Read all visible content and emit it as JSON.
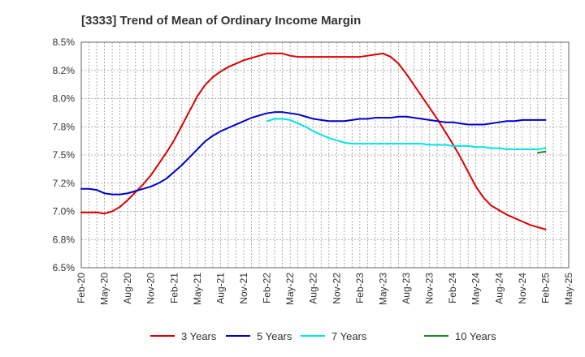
{
  "chart_data": {
    "type": "line",
    "title": "[3333]  Trend of Mean of Ordinary Income Margin",
    "xlabel": "",
    "ylabel": "",
    "x_ticks": [
      "Feb-20",
      "May-20",
      "Aug-20",
      "Nov-20",
      "Feb-21",
      "May-21",
      "Aug-21",
      "Nov-21",
      "Feb-22",
      "May-22",
      "Aug-22",
      "Nov-22",
      "Feb-23",
      "May-23",
      "Aug-23",
      "Nov-23",
      "Feb-24",
      "May-24",
      "Aug-24",
      "Nov-24",
      "Feb-25",
      "May-25"
    ],
    "y_ticks": [
      "6.5%",
      "6.8%",
      "7.0%",
      "7.2%",
      "7.5%",
      "7.8%",
      "8.0%",
      "8.2%",
      "8.5%"
    ],
    "ylim": [
      6.5,
      8.5
    ],
    "grid": true,
    "legend_position": "bottom",
    "series": [
      {
        "name": "3 Years",
        "color": "#dd0000",
        "points": [
          [
            "Feb-20",
            6.99
          ],
          [
            "Mar-20",
            6.99
          ],
          [
            "Apr-20",
            6.99
          ],
          [
            "May-20",
            6.98
          ],
          [
            "Jun-20",
            7.0
          ],
          [
            "Jul-20",
            7.04
          ],
          [
            "Aug-20",
            7.1
          ],
          [
            "Sep-20",
            7.17
          ],
          [
            "Oct-20",
            7.24
          ],
          [
            "Nov-20",
            7.32
          ],
          [
            "Dec-20",
            7.42
          ],
          [
            "Jan-21",
            7.52
          ],
          [
            "Feb-21",
            7.63
          ],
          [
            "Mar-21",
            7.76
          ],
          [
            "Apr-21",
            7.89
          ],
          [
            "May-21",
            8.02
          ],
          [
            "Jun-21",
            8.12
          ],
          [
            "Jul-21",
            8.19
          ],
          [
            "Aug-21",
            8.24
          ],
          [
            "Sep-21",
            8.28
          ],
          [
            "Oct-21",
            8.31
          ],
          [
            "Nov-21",
            8.34
          ],
          [
            "Dec-21",
            8.36
          ],
          [
            "Jan-22",
            8.38
          ],
          [
            "Feb-22",
            8.4
          ],
          [
            "Mar-22",
            8.4
          ],
          [
            "Apr-22",
            8.4
          ],
          [
            "May-22",
            8.38
          ],
          [
            "Jun-22",
            8.37
          ],
          [
            "Jul-22",
            8.37
          ],
          [
            "Aug-22",
            8.37
          ],
          [
            "Sep-22",
            8.37
          ],
          [
            "Oct-22",
            8.37
          ],
          [
            "Nov-22",
            8.37
          ],
          [
            "Dec-22",
            8.37
          ],
          [
            "Jan-23",
            8.37
          ],
          [
            "Feb-23",
            8.37
          ],
          [
            "Mar-23",
            8.38
          ],
          [
            "Apr-23",
            8.39
          ],
          [
            "May-23",
            8.4
          ],
          [
            "Jun-23",
            8.37
          ],
          [
            "Jul-23",
            8.31
          ],
          [
            "Aug-23",
            8.22
          ],
          [
            "Sep-23",
            8.12
          ],
          [
            "Oct-23",
            8.02
          ],
          [
            "Nov-23",
            7.92
          ],
          [
            "Dec-23",
            7.82
          ],
          [
            "Jan-24",
            7.71
          ],
          [
            "Feb-24",
            7.6
          ],
          [
            "Mar-24",
            7.48
          ],
          [
            "Apr-24",
            7.35
          ],
          [
            "May-24",
            7.22
          ],
          [
            "Jun-24",
            7.12
          ],
          [
            "Jul-24",
            7.05
          ],
          [
            "Aug-24",
            7.01
          ],
          [
            "Sep-24",
            6.97
          ],
          [
            "Oct-24",
            6.94
          ],
          [
            "Nov-24",
            6.91
          ],
          [
            "Dec-24",
            6.88
          ],
          [
            "Jan-25",
            6.86
          ],
          [
            "Feb-25",
            6.84
          ]
        ]
      },
      {
        "name": "5 Years",
        "color": "#0000cc",
        "points": [
          [
            "Feb-20",
            7.2
          ],
          [
            "Mar-20",
            7.2
          ],
          [
            "Apr-20",
            7.19
          ],
          [
            "May-20",
            7.16
          ],
          [
            "Jun-20",
            7.15
          ],
          [
            "Jul-20",
            7.15
          ],
          [
            "Aug-20",
            7.16
          ],
          [
            "Sep-20",
            7.18
          ],
          [
            "Oct-20",
            7.2
          ],
          [
            "Nov-20",
            7.22
          ],
          [
            "Dec-20",
            7.25
          ],
          [
            "Jan-21",
            7.29
          ],
          [
            "Feb-21",
            7.35
          ],
          [
            "Mar-21",
            7.41
          ],
          [
            "Apr-21",
            7.48
          ],
          [
            "May-21",
            7.55
          ],
          [
            "Jun-21",
            7.62
          ],
          [
            "Jul-21",
            7.67
          ],
          [
            "Aug-21",
            7.71
          ],
          [
            "Sep-21",
            7.74
          ],
          [
            "Oct-21",
            7.77
          ],
          [
            "Nov-21",
            7.8
          ],
          [
            "Dec-21",
            7.83
          ],
          [
            "Jan-22",
            7.85
          ],
          [
            "Feb-22",
            7.87
          ],
          [
            "Mar-22",
            7.88
          ],
          [
            "Apr-22",
            7.88
          ],
          [
            "May-22",
            7.87
          ],
          [
            "Jun-22",
            7.86
          ],
          [
            "Jul-22",
            7.84
          ],
          [
            "Aug-22",
            7.82
          ],
          [
            "Sep-22",
            7.81
          ],
          [
            "Oct-22",
            7.8
          ],
          [
            "Nov-22",
            7.8
          ],
          [
            "Dec-22",
            7.8
          ],
          [
            "Jan-23",
            7.81
          ],
          [
            "Feb-23",
            7.82
          ],
          [
            "Mar-23",
            7.82
          ],
          [
            "Apr-23",
            7.83
          ],
          [
            "May-23",
            7.83
          ],
          [
            "Jun-23",
            7.83
          ],
          [
            "Jul-23",
            7.84
          ],
          [
            "Aug-23",
            7.84
          ],
          [
            "Sep-23",
            7.83
          ],
          [
            "Oct-23",
            7.82
          ],
          [
            "Nov-23",
            7.81
          ],
          [
            "Dec-23",
            7.8
          ],
          [
            "Jan-24",
            7.79
          ],
          [
            "Feb-24",
            7.79
          ],
          [
            "Mar-24",
            7.78
          ],
          [
            "Apr-24",
            7.77
          ],
          [
            "May-24",
            7.77
          ],
          [
            "Jun-24",
            7.77
          ],
          [
            "Jul-24",
            7.78
          ],
          [
            "Aug-24",
            7.79
          ],
          [
            "Sep-24",
            7.8
          ],
          [
            "Oct-24",
            7.8
          ],
          [
            "Nov-24",
            7.81
          ],
          [
            "Dec-24",
            7.81
          ],
          [
            "Jan-25",
            7.81
          ],
          [
            "Feb-25",
            7.81
          ]
        ]
      },
      {
        "name": "7 Years",
        "color": "#00e5e5",
        "points": [
          [
            "Feb-22",
            7.8
          ],
          [
            "Mar-22",
            7.82
          ],
          [
            "Apr-22",
            7.82
          ],
          [
            "May-22",
            7.81
          ],
          [
            "Jun-22",
            7.78
          ],
          [
            "Jul-22",
            7.75
          ],
          [
            "Aug-22",
            7.71
          ],
          [
            "Sep-22",
            7.68
          ],
          [
            "Oct-22",
            7.65
          ],
          [
            "Nov-22",
            7.63
          ],
          [
            "Dec-22",
            7.61
          ],
          [
            "Jan-23",
            7.6
          ],
          [
            "Feb-23",
            7.6
          ],
          [
            "Mar-23",
            7.6
          ],
          [
            "Apr-23",
            7.6
          ],
          [
            "May-23",
            7.6
          ],
          [
            "Jun-23",
            7.6
          ],
          [
            "Jul-23",
            7.6
          ],
          [
            "Aug-23",
            7.6
          ],
          [
            "Sep-23",
            7.6
          ],
          [
            "Oct-23",
            7.6
          ],
          [
            "Nov-23",
            7.59
          ],
          [
            "Dec-23",
            7.59
          ],
          [
            "Jan-24",
            7.59
          ],
          [
            "Feb-24",
            7.58
          ],
          [
            "Mar-24",
            7.58
          ],
          [
            "Apr-24",
            7.58
          ],
          [
            "May-24",
            7.57
          ],
          [
            "Jun-24",
            7.57
          ],
          [
            "Jul-24",
            7.56
          ],
          [
            "Aug-24",
            7.56
          ],
          [
            "Sep-24",
            7.55
          ],
          [
            "Oct-24",
            7.55
          ],
          [
            "Nov-24",
            7.55
          ],
          [
            "Dec-24",
            7.55
          ],
          [
            "Jan-25",
            7.55
          ],
          [
            "Feb-25",
            7.56
          ]
        ]
      },
      {
        "name": "10 Years",
        "color": "#228b22",
        "points": [
          [
            "Jan-25",
            7.52
          ],
          [
            "Feb-25",
            7.53
          ]
        ]
      }
    ]
  }
}
